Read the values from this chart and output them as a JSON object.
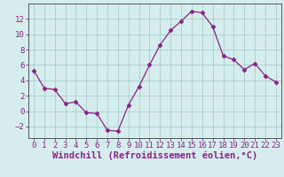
{
  "x": [
    0,
    1,
    2,
    3,
    4,
    5,
    6,
    7,
    8,
    9,
    10,
    11,
    12,
    13,
    14,
    15,
    16,
    17,
    18,
    19,
    20,
    21,
    22,
    23
  ],
  "y": [
    5.3,
    3.0,
    2.8,
    1.0,
    1.2,
    -0.2,
    -0.3,
    -2.5,
    -2.6,
    0.8,
    3.2,
    6.0,
    8.6,
    10.5,
    11.7,
    13.0,
    12.8,
    11.0,
    7.2,
    6.7,
    5.4,
    6.2,
    4.6,
    3.8
  ],
  "line_color": "#882288",
  "marker": "D",
  "marker_size": 2.5,
  "bg_color": "#d5eeed",
  "grid_color": "#aacccc",
  "axis_color": "#444444",
  "tick_color": "#882288",
  "xlabel": "Windchill (Refroidissement éolien,°C)",
  "xlim": [
    -0.5,
    23.5
  ],
  "ylim": [
    -3.5,
    14.0
  ],
  "yticks": [
    -2,
    0,
    2,
    4,
    6,
    8,
    10,
    12
  ],
  "xticks": [
    0,
    1,
    2,
    3,
    4,
    5,
    6,
    7,
    8,
    9,
    10,
    11,
    12,
    13,
    14,
    15,
    16,
    17,
    18,
    19,
    20,
    21,
    22,
    23
  ],
  "tick_fontsize": 6.5,
  "label_fontsize": 7.5
}
